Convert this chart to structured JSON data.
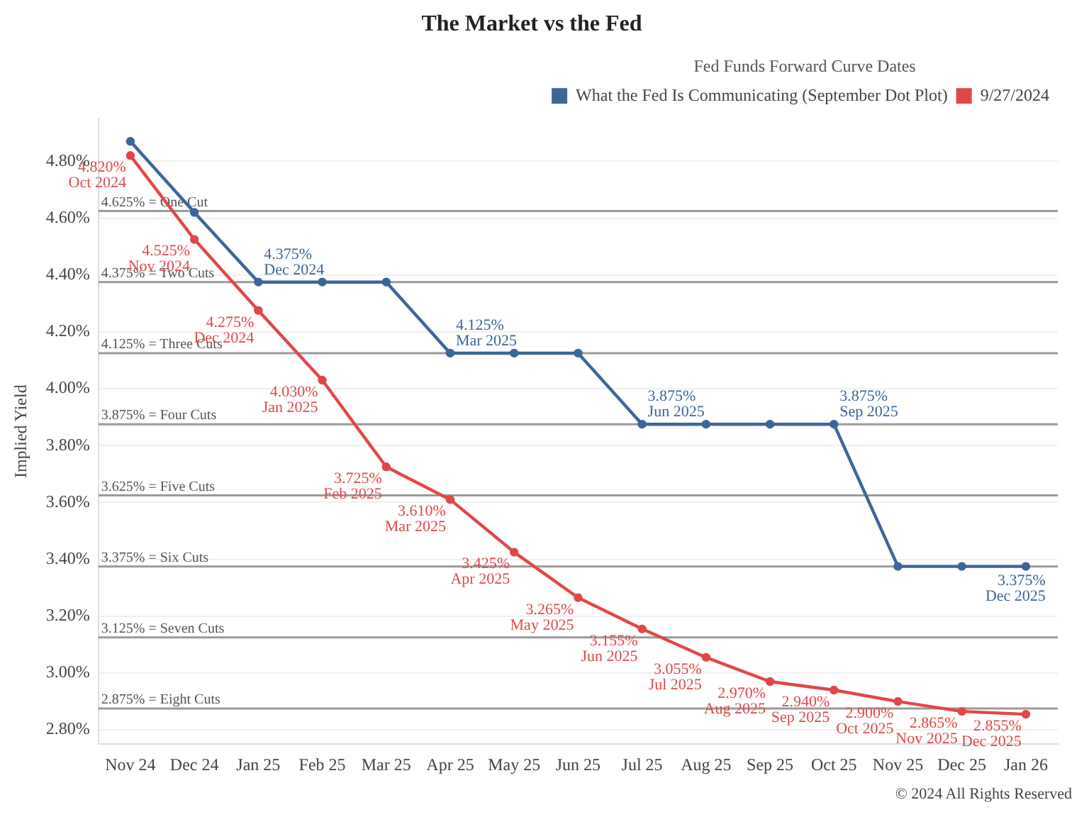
{
  "chart_data": {
    "type": "line",
    "title": "The Market vs the Fed",
    "ylabel": "Implied Yield",
    "legend_title": "Fed Funds Forward Curve Dates",
    "categories": [
      "Nov 24",
      "Dec 24",
      "Jan 25",
      "Feb 25",
      "Mar 25",
      "Apr 25",
      "May 25",
      "Jun 25",
      "Jul 25",
      "Aug 25",
      "Sep 25",
      "Oct 25",
      "Nov 25",
      "Dec 25",
      "Jan 26"
    ],
    "series": [
      {
        "name": "What the Fed Is Communicating (September Dot Plot)",
        "color": "#3b6699",
        "values": [
          4.87,
          4.62,
          4.375,
          4.375,
          4.375,
          4.125,
          4.125,
          4.125,
          3.875,
          3.875,
          3.875,
          3.875,
          3.375,
          3.375,
          3.375
        ],
        "value_labels": [
          null,
          null,
          "4.375%\nDec 2024",
          null,
          null,
          "4.125%\nMar 2025",
          null,
          null,
          "3.875%\nJun 2025",
          null,
          null,
          "3.875%\nSep 2025",
          null,
          null,
          "3.375%\nDec 2025"
        ]
      },
      {
        "name": "9/27/2024",
        "color": "#e04848",
        "values": [
          4.82,
          4.525,
          4.275,
          4.03,
          3.725,
          3.61,
          3.425,
          3.265,
          3.155,
          3.055,
          2.97,
          2.94,
          2.9,
          2.865,
          2.855
        ],
        "value_labels": [
          "4.820%\nOct 2024",
          "4.525%\nNov 2024",
          "4.275%\nDec 2024",
          "4.030%\nJan 2025",
          "3.725%\nFeb 2025",
          "3.610%\nMar 2025",
          "3.425%\nApr 2025",
          "3.265%\nMay 2025",
          "3.155%\nJun 2025",
          "3.055%\nJul 2025",
          "2.970%\nAug 2025",
          "2.940%\nSep 2025",
          "2.900%\nOct 2025",
          "2.865%\nNov 2025",
          "2.855%\nDec 2025"
        ]
      }
    ],
    "ylim": [
      2.75,
      4.95
    ],
    "yticks": [
      {
        "value": 2.8,
        "label": "2.80%"
      },
      {
        "value": 3.0,
        "label": "3.00%"
      },
      {
        "value": 3.2,
        "label": "3.20%"
      },
      {
        "value": 3.4,
        "label": "3.40%"
      },
      {
        "value": 3.6,
        "label": "3.60%"
      },
      {
        "value": 3.8,
        "label": "3.80%"
      },
      {
        "value": 4.0,
        "label": "4.00%"
      },
      {
        "value": 4.2,
        "label": "4.20%"
      },
      {
        "value": 4.4,
        "label": "4.40%"
      },
      {
        "value": 4.6,
        "label": "4.60%"
      },
      {
        "value": 4.8,
        "label": "4.80%"
      }
    ],
    "ref_lines": [
      {
        "axis": "y",
        "value": 4.625,
        "label": "4.625% = One Cut",
        "color": "#9a9a9a"
      },
      {
        "axis": "y",
        "value": 4.375,
        "label": "4.375% = Two Cuts",
        "color": "#9a9a9a"
      },
      {
        "axis": "y",
        "value": 4.125,
        "label": "4.125% = Three Cuts",
        "color": "#9a9a9a"
      },
      {
        "axis": "y",
        "value": 3.875,
        "label": "3.875% = Four Cuts",
        "color": "#9a9a9a"
      },
      {
        "axis": "y",
        "value": 3.625,
        "label": "3.625% = Five Cuts",
        "color": "#9a9a9a"
      },
      {
        "axis": "y",
        "value": 3.375,
        "label": "3.375% = Six Cuts",
        "color": "#9a9a9a"
      },
      {
        "axis": "y",
        "value": 3.125,
        "label": "3.125% = Seven Cuts",
        "color": "#9a9a9a"
      },
      {
        "axis": "y",
        "value": 2.875,
        "label": "2.875% = Eight Cuts",
        "color": "#9a9a9a"
      }
    ],
    "annotations": [
      "© 2024 All Rights Reserved"
    ],
    "grid": "y",
    "legend": "top right",
    "marker": "circle",
    "line_style": "solid"
  }
}
